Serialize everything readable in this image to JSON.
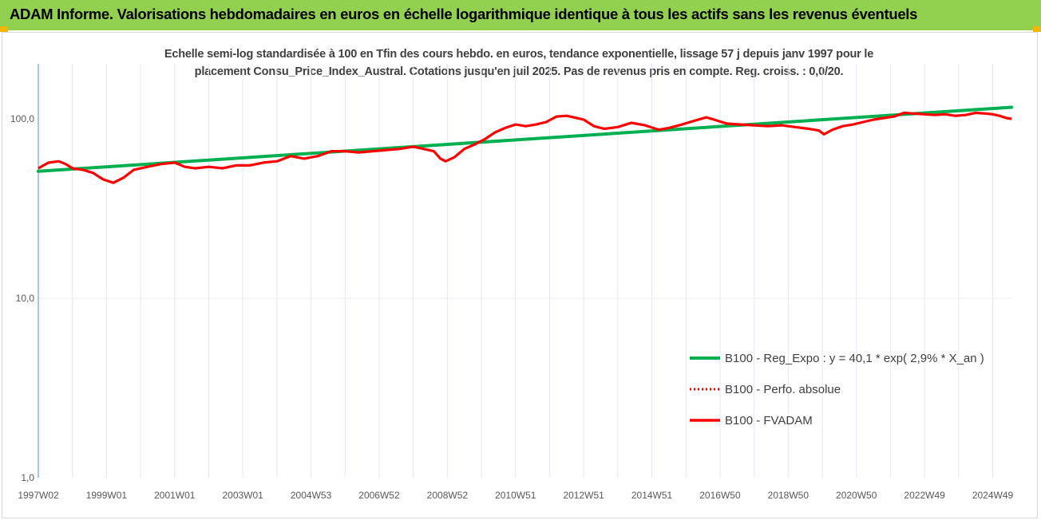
{
  "header": {
    "title": "ADAM Informe. Valorisations hebdomadaires en euros en échelle logarithmique identique à tous les actifs sans les revenus éventuels",
    "background": "#92d050"
  },
  "chart_data": {
    "type": "line",
    "subtitle_line1": "Echelle semi-log standardisée à 100 en Tfin des cours hebdo. en euros, tendance exponentielle, lissage 57 j depuis janv 1997 pour le",
    "subtitle_line2": "placement Consu_Price_Index_Austral. Cotations jusqu'en juil 2025. Pas de revenus pris en compte. Reg. croiss. : 0,0/20.",
    "y_scale": "log",
    "ylim": [
      1,
      200
    ],
    "y_ticks": [
      {
        "value": 100,
        "label": "100,0"
      },
      {
        "value": 10,
        "label": "10,0"
      },
      {
        "value": 1,
        "label": "1,0"
      }
    ],
    "xlim": [
      1997.0,
      2025.55
    ],
    "x_ticks": [
      {
        "value": 1997.0,
        "label": "1997W02"
      },
      {
        "value": 1999.0,
        "label": "1999W01"
      },
      {
        "value": 2001.0,
        "label": "2001W01"
      },
      {
        "value": 2003.0,
        "label": "2003W01"
      },
      {
        "value": 2005.0,
        "label": "2004W53"
      },
      {
        "value": 2007.0,
        "label": "2006W52"
      },
      {
        "value": 2009.0,
        "label": "2008W52"
      },
      {
        "value": 2011.0,
        "label": "2010W51"
      },
      {
        "value": 2013.0,
        "label": "2012W51"
      },
      {
        "value": 2015.0,
        "label": "2014W51"
      },
      {
        "value": 2017.0,
        "label": "2016W50"
      },
      {
        "value": 2019.0,
        "label": "2018W50"
      },
      {
        "value": 2021.0,
        "label": "2020W50"
      },
      {
        "value": 2023.0,
        "label": "2022W49"
      },
      {
        "value": 2025.0,
        "label": "2024W49"
      }
    ],
    "grid": "vertical minor",
    "legend_position": "right",
    "series": [
      {
        "name": "B100 - Reg_Expo : y = 40,1 * exp( 2,9% *  X_an )",
        "color": "#00b050",
        "style": "solid",
        "x": [
          1997.0,
          2025.55
        ],
        "y": [
          51,
          116
        ]
      },
      {
        "name": "B100 - Perfo. absolue",
        "color": "#ff0000",
        "style": "dotted",
        "x": [],
        "y": []
      },
      {
        "name": "B100 - FVADAM",
        "color": "#ff0000",
        "style": "solid",
        "x": [
          1997.0,
          1997.3,
          1997.6,
          1997.8,
          1998.0,
          1998.3,
          1998.6,
          1998.9,
          1999.2,
          1999.5,
          1999.8,
          2000.2,
          2000.6,
          2001.0,
          2001.3,
          2001.6,
          2002.0,
          2002.4,
          2002.8,
          2003.2,
          2003.6,
          2004.0,
          2004.4,
          2004.8,
          2005.2,
          2005.6,
          2006.0,
          2006.4,
          2006.8,
          2007.2,
          2007.6,
          2008.0,
          2008.3,
          2008.6,
          2008.8,
          2008.95,
          2009.2,
          2009.5,
          2009.8,
          2010.1,
          2010.4,
          2010.7,
          2011.0,
          2011.3,
          2011.6,
          2011.9,
          2012.2,
          2012.5,
          2012.8,
          2013.0,
          2013.3,
          2013.6,
          2014.0,
          2014.4,
          2014.8,
          2015.2,
          2015.5,
          2015.8,
          2016.2,
          2016.6,
          2016.9,
          2017.2,
          2017.6,
          2018.0,
          2018.4,
          2018.8,
          2019.2,
          2019.6,
          2019.9,
          2020.05,
          2020.3,
          2020.6,
          2020.9,
          2021.2,
          2021.5,
          2021.8,
          2022.1,
          2022.4,
          2022.7,
          2023.0,
          2023.3,
          2023.6,
          2023.9,
          2024.2,
          2024.5,
          2024.8,
          2025.0,
          2025.2,
          2025.4,
          2025.55
        ],
        "y": [
          53,
          57,
          58,
          56,
          53,
          52,
          50,
          46,
          44,
          47,
          52,
          54,
          56,
          57,
          54,
          53,
          54,
          53,
          55,
          55,
          57,
          58,
          62,
          60,
          62,
          66,
          66,
          65,
          66,
          67,
          68,
          70,
          68,
          66,
          60,
          58,
          61,
          68,
          72,
          77,
          84,
          89,
          93,
          91,
          93,
          96,
          103,
          104,
          101,
          99,
          91,
          88,
          90,
          95,
          92,
          87,
          89,
          92,
          97,
          102,
          98,
          94,
          93,
          92,
          91,
          92,
          90,
          88,
          86,
          82,
          87,
          91,
          93,
          96,
          99,
          101,
          103,
          108,
          107,
          106,
          105,
          106,
          104,
          105,
          108,
          107,
          106,
          104,
          101,
          100
        ]
      }
    ]
  }
}
